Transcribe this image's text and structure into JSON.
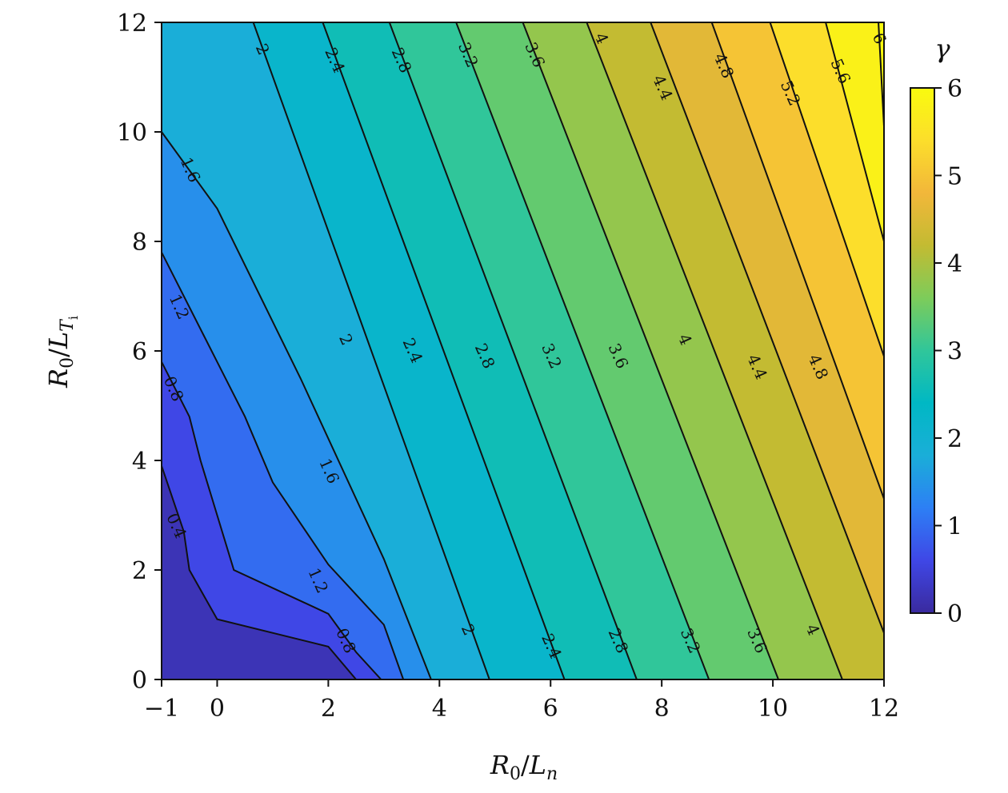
{
  "chart_data": {
    "type": "heatmap",
    "subtype": "filled contour",
    "title": "",
    "xlabel": "R0/Ln",
    "ylabel": "R0/LTi",
    "xlim": [
      -1,
      12
    ],
    "ylim": [
      0,
      12
    ],
    "xticks": [
      -1,
      0,
      2,
      4,
      6,
      8,
      10,
      12
    ],
    "xtick_labels": [
      "−1",
      "0",
      "2",
      "4",
      "6",
      "8",
      "10",
      "12"
    ],
    "yticks": [
      0,
      2,
      4,
      6,
      8,
      10,
      12
    ],
    "ytick_labels": [
      "0",
      "2",
      "4",
      "6",
      "8",
      "10",
      "12"
    ],
    "colorbar": {
      "label": "γ",
      "range": [
        0,
        6
      ],
      "ticks": [
        0,
        1,
        2,
        3,
        4,
        5,
        6
      ],
      "tick_labels": [
        "0",
        "1",
        "2",
        "3",
        "4",
        "5",
        "6"
      ],
      "colormap": [
        "#3a2a9e",
        "#3f47e6",
        "#2d7ff5",
        "#1aaed8",
        "#00b8c4",
        "#30c69a",
        "#7dcc5a",
        "#c3bb32",
        "#f2b73a",
        "#fcde2b",
        "#f9fb0e"
      ]
    },
    "contour_levels": [
      0.4,
      0.8,
      1.2,
      1.6,
      2,
      2.4,
      2.8,
      3.2,
      3.6,
      4,
      4.4,
      4.8,
      5.2,
      5.6,
      6
    ],
    "contours": [
      {
        "level": 0.4,
        "label": "0.4",
        "points": [
          [
            -1,
            3.9
          ],
          [
            -0.6,
            2.7
          ],
          [
            -0.5,
            2.0
          ],
          [
            0.0,
            1.1
          ],
          [
            2.0,
            0.6
          ],
          [
            2.5,
            0.0
          ]
        ]
      },
      {
        "level": 0.8,
        "label": "0.8",
        "points": [
          [
            -1,
            5.8
          ],
          [
            -0.5,
            4.8
          ],
          [
            -0.3,
            4.0
          ],
          [
            0.3,
            2.0
          ],
          [
            2.0,
            1.2
          ],
          [
            2.5,
            0.5
          ],
          [
            2.95,
            0.0
          ]
        ]
      },
      {
        "level": 1.2,
        "label": "1.2",
        "points": [
          [
            -1,
            7.8
          ],
          [
            0.0,
            5.8
          ],
          [
            0.5,
            4.8
          ],
          [
            1.0,
            3.6
          ],
          [
            2.0,
            2.1
          ],
          [
            3.0,
            1.0
          ],
          [
            3.35,
            0.0
          ]
        ]
      },
      {
        "level": 1.6,
        "label": "1.6",
        "points": [
          [
            -1,
            10.0
          ],
          [
            0.0,
            8.6
          ],
          [
            1.5,
            5.5
          ],
          [
            3.0,
            2.2
          ],
          [
            3.85,
            0.0
          ]
        ]
      },
      {
        "level": 2.0,
        "label": "2",
        "points": [
          [
            0.65,
            12.0
          ],
          [
            4.9,
            0.0
          ]
        ]
      },
      {
        "level": 2.4,
        "label": "2.4",
        "points": [
          [
            1.9,
            12.0
          ],
          [
            6.25,
            0.0
          ]
        ]
      },
      {
        "level": 2.8,
        "label": "2.8",
        "points": [
          [
            3.1,
            12.0
          ],
          [
            7.55,
            0.0
          ]
        ]
      },
      {
        "level": 3.2,
        "label": "3.2",
        "points": [
          [
            4.3,
            12.0
          ],
          [
            8.85,
            0.0
          ]
        ]
      },
      {
        "level": 3.6,
        "label": "3.6",
        "points": [
          [
            5.5,
            12.0
          ],
          [
            10.1,
            0.0
          ]
        ]
      },
      {
        "level": 4.0,
        "label": "4",
        "points": [
          [
            6.65,
            12.0
          ],
          [
            11.25,
            0.0
          ]
        ]
      },
      {
        "level": 4.4,
        "label": "4.4",
        "points": [
          [
            7.8,
            12.0
          ],
          [
            12.0,
            0.85
          ]
        ]
      },
      {
        "level": 4.8,
        "label": "4.8",
        "points": [
          [
            8.9,
            12.0
          ],
          [
            12.0,
            3.3
          ]
        ]
      },
      {
        "level": 5.2,
        "label": "5.2",
        "points": [
          [
            9.95,
            12.0
          ],
          [
            12.0,
            5.9
          ]
        ]
      },
      {
        "level": 5.6,
        "label": "5.6",
        "points": [
          [
            10.95,
            12.0
          ],
          [
            12.0,
            8.0
          ]
        ]
      },
      {
        "level": 6.0,
        "label": "6",
        "points": [
          [
            11.9,
            12.0
          ],
          [
            12.0,
            10.1
          ]
        ]
      }
    ],
    "contour_labels": [
      {
        "text": "2",
        "x": 0.8,
        "y": 11.5
      },
      {
        "text": "2.4",
        "x": 2.1,
        "y": 11.3
      },
      {
        "text": "2.8",
        "x": 3.3,
        "y": 11.3
      },
      {
        "text": "3.2",
        "x": 4.5,
        "y": 11.4
      },
      {
        "text": "3.6",
        "x": 5.7,
        "y": 11.4
      },
      {
        "text": "4",
        "x": 6.9,
        "y": 11.7
      },
      {
        "text": "4.4",
        "x": 8.0,
        "y": 10.8
      },
      {
        "text": "4.8",
        "x": 9.1,
        "y": 11.2
      },
      {
        "text": "5.2",
        "x": 10.3,
        "y": 10.7
      },
      {
        "text": "5.6",
        "x": 11.2,
        "y": 11.1
      },
      {
        "text": "6",
        "x": 11.9,
        "y": 11.7
      },
      {
        "text": "1.6",
        "x": -0.5,
        "y": 9.3
      },
      {
        "text": "1.2",
        "x": -0.7,
        "y": 6.8
      },
      {
        "text": "0.8",
        "x": -0.8,
        "y": 5.3
      },
      {
        "text": "0.4",
        "x": -0.75,
        "y": 2.8
      },
      {
        "text": "2",
        "x": 2.3,
        "y": 6.2
      },
      {
        "text": "2.4",
        "x": 3.5,
        "y": 6.0
      },
      {
        "text": "2.8",
        "x": 4.8,
        "y": 5.9
      },
      {
        "text": "3.2",
        "x": 6.0,
        "y": 5.9
      },
      {
        "text": "3.6",
        "x": 7.2,
        "y": 5.9
      },
      {
        "text": "4",
        "x": 8.4,
        "y": 6.2
      },
      {
        "text": "4.4",
        "x": 9.7,
        "y": 5.7
      },
      {
        "text": "4.8",
        "x": 10.8,
        "y": 5.7
      },
      {
        "text": "1.6",
        "x": 2.0,
        "y": 3.8
      },
      {
        "text": "1.2",
        "x": 1.8,
        "y": 1.8
      },
      {
        "text": "0.8",
        "x": 2.3,
        "y": 0.7
      },
      {
        "text": "2",
        "x": 4.5,
        "y": 0.9
      },
      {
        "text": "2.4",
        "x": 6.0,
        "y": 0.6
      },
      {
        "text": "2.8",
        "x": 7.2,
        "y": 0.7
      },
      {
        "text": "3.2",
        "x": 8.5,
        "y": 0.7
      },
      {
        "text": "3.6",
        "x": 9.7,
        "y": 0.7
      },
      {
        "text": "4",
        "x": 10.7,
        "y": 0.9
      }
    ],
    "grid": false,
    "legend": "colorbar right"
  }
}
